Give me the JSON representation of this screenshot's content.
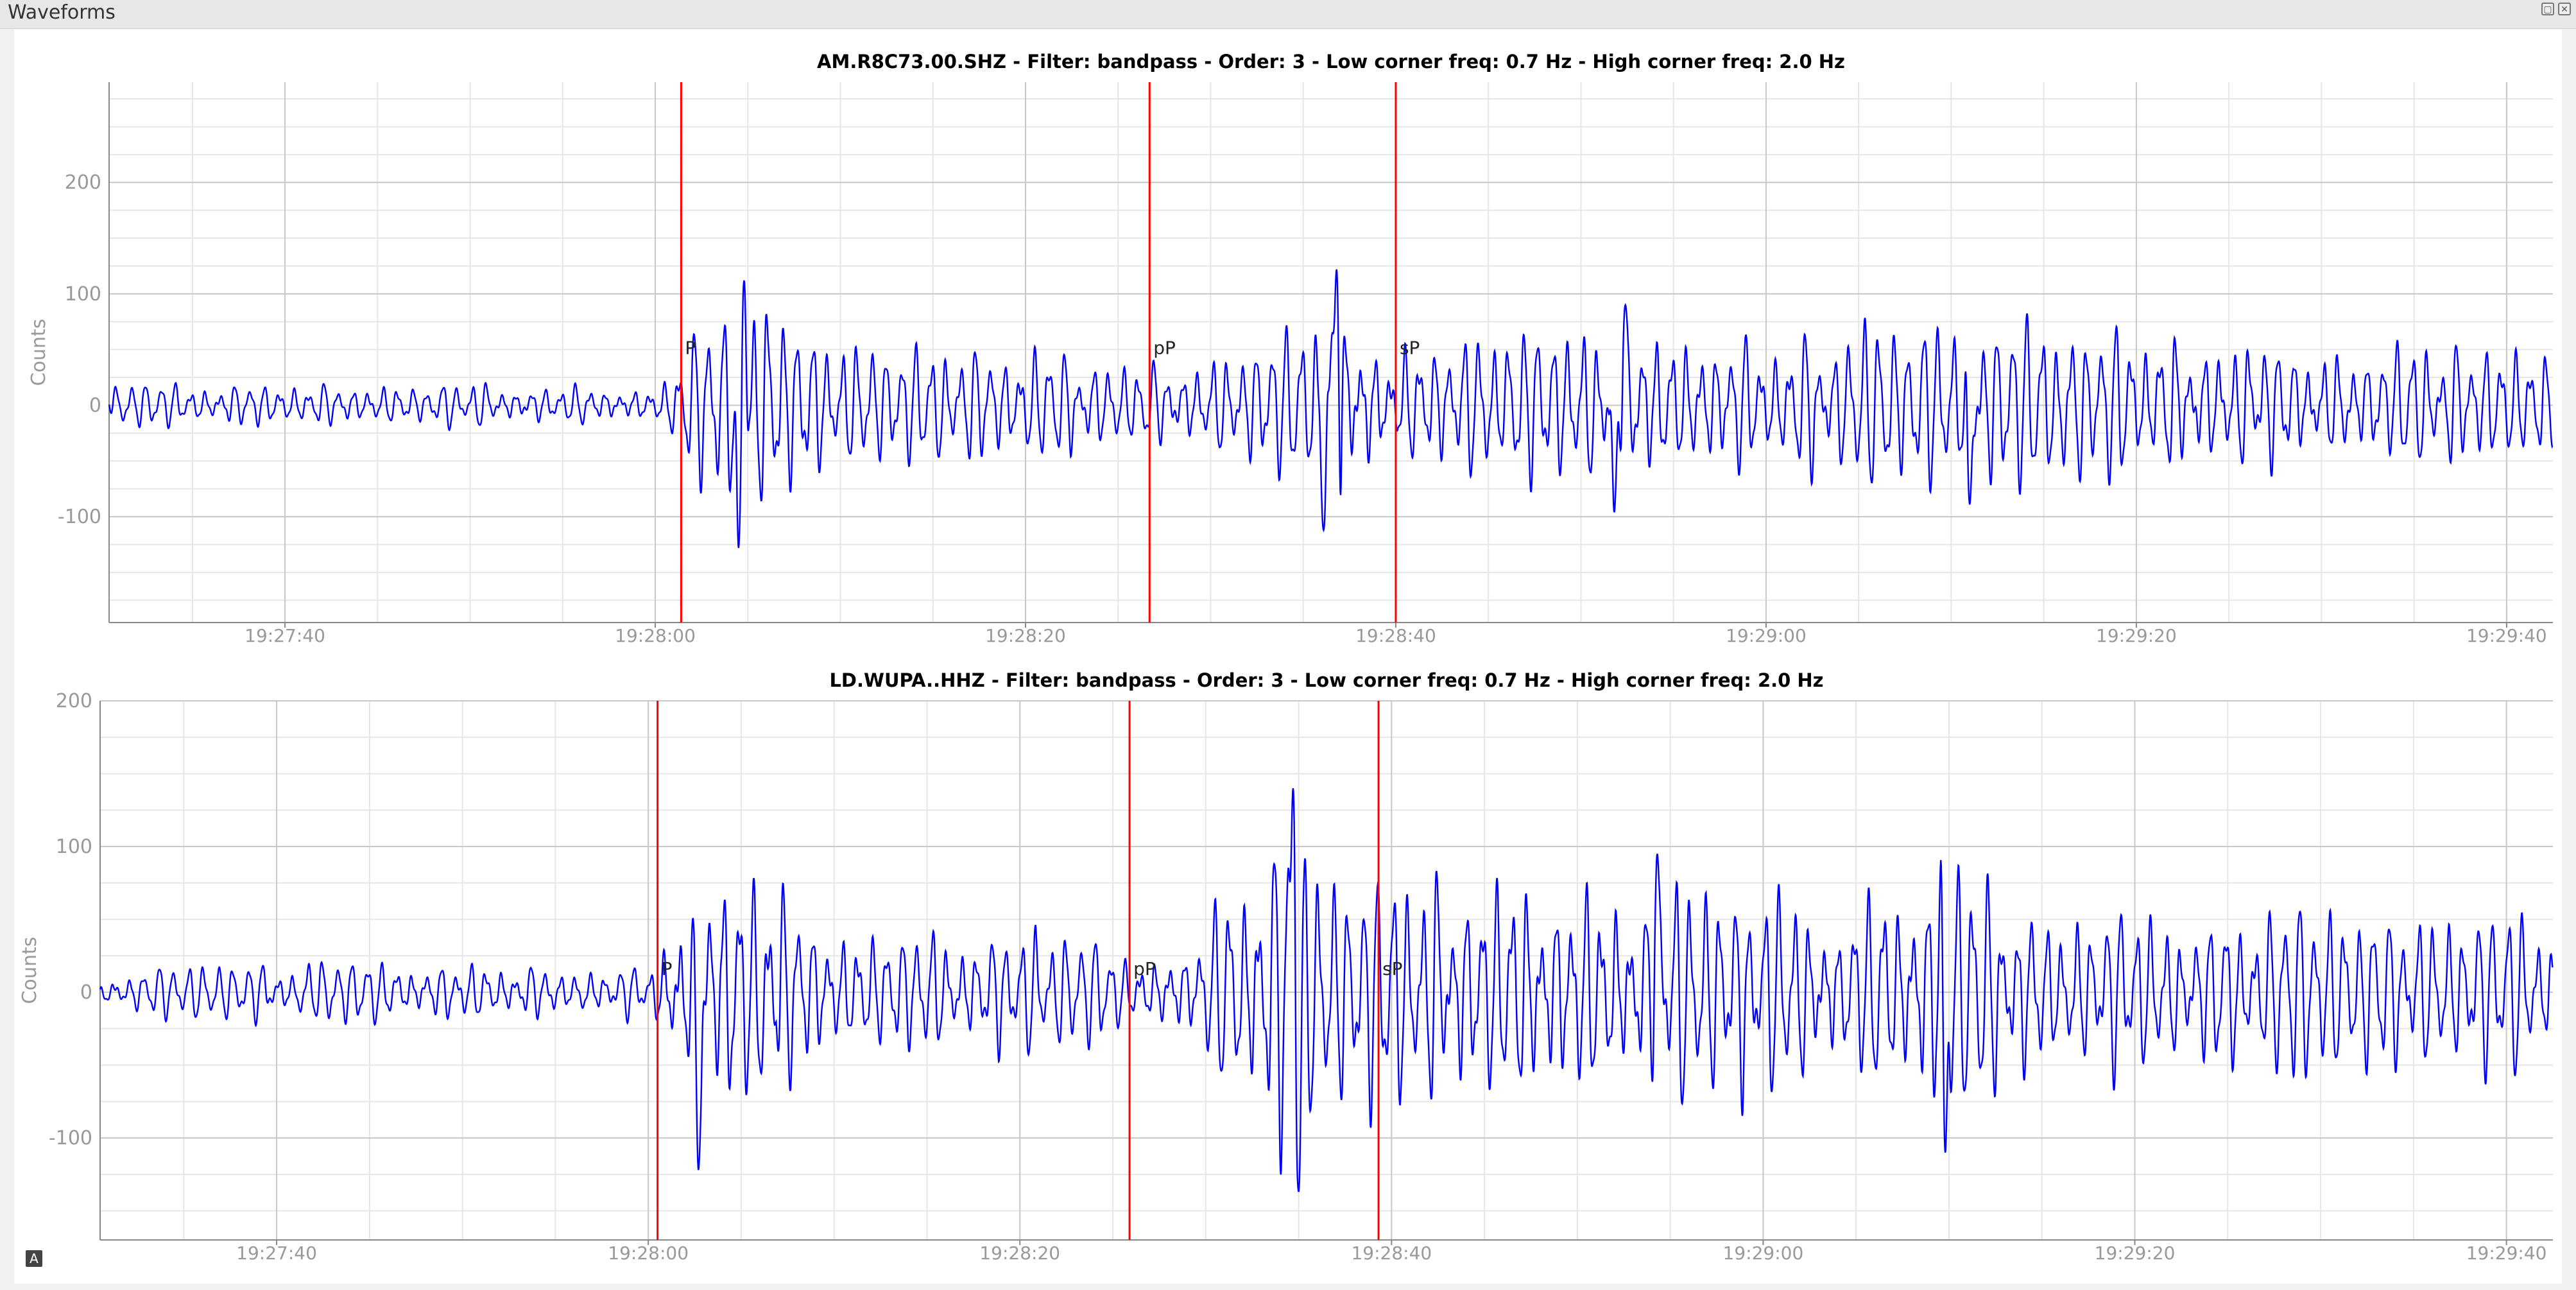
{
  "window": {
    "title": "Waveforms",
    "restore_icon": "restore-window-icon",
    "close_icon": "close-window-icon",
    "autoscale_label": "A"
  },
  "colors": {
    "trace": "#0000ff",
    "pick": "#ff0000",
    "grid_major": "#c8c8c8",
    "grid_minor": "#e6e6e6",
    "axis": "#888888",
    "label": "#999999",
    "title": "#000000"
  },
  "chart_data": [
    {
      "type": "line",
      "title": "AM.R8C73.00.SHZ - Filter: bandpass - Order: 3 - Low corner freq: 0.7 Hz - High corner freq: 2.0 Hz",
      "ylabel": "Counts",
      "xlabel": "",
      "xlim": [
        "19:27:30.5",
        "19:29:42.5"
      ],
      "ylim": [
        -195,
        290
      ],
      "x_ticks": [
        "19:27:40",
        "19:28:00",
        "19:28:20",
        "19:28:40",
        "19:29:00",
        "19:29:20",
        "19:29:40"
      ],
      "y_ticks": [
        -100,
        0,
        100,
        200
      ],
      "grid": true,
      "picks": [
        {
          "label": "P",
          "time": "19:28:01.4"
        },
        {
          "label": "pP",
          "time": "19:28:26.7"
        },
        {
          "label": "sP",
          "time": "19:28:40.0"
        }
      ],
      "series": [
        {
          "envelope": [
            [
              "19:27:30.5",
              20
            ],
            [
              "19:28:00",
              22
            ],
            [
              "19:28:03",
              90
            ],
            [
              "19:28:05",
              120
            ],
            [
              "19:28:10",
              60
            ],
            [
              "19:28:20",
              50
            ],
            [
              "19:28:26",
              40
            ],
            [
              "19:28:30",
              50
            ],
            [
              "19:28:35",
              80
            ],
            [
              "19:28:37",
              110
            ],
            [
              "19:28:40",
              60
            ],
            [
              "19:28:45",
              70
            ],
            [
              "19:28:52",
              85
            ],
            [
              "19:29:00",
              60
            ],
            [
              "19:29:10",
              80
            ],
            [
              "19:29:20",
              75
            ],
            [
              "19:29:30",
              60
            ],
            [
              "19:29:42.5",
              55
            ]
          ],
          "peaks": [
            [
              "19:28:04.8",
              112
            ],
            [
              "19:28:04.5",
              -128
            ],
            [
              "19:28:36.8",
              122
            ],
            [
              "19:28:36.1",
              -112
            ],
            [
              "19:28:52.4",
              90
            ],
            [
              "19:28:51.8",
              -96
            ],
            [
              "19:29:11.0",
              -89
            ]
          ]
        }
      ]
    },
    {
      "type": "line",
      "title": "LD.WUPA..HHZ - Filter: bandpass - Order: 3 - Low corner freq: 0.7 Hz - High corner freq: 2.0 Hz",
      "ylabel": "Counts",
      "xlabel": "",
      "xlim": [
        "19:27:30.5",
        "19:29:42.5"
      ],
      "ylim": [
        -170,
        200
      ],
      "x_ticks": [
        "19:27:40",
        "19:28:00",
        "19:28:20",
        "19:28:40",
        "19:29:00",
        "19:29:20",
        "19:29:40"
      ],
      "y_ticks": [
        -100,
        0,
        100,
        200
      ],
      "grid": true,
      "picks": [
        {
          "label": "P",
          "time": "19:28:00.5"
        },
        {
          "label": "pP",
          "time": "19:28:25.9"
        },
        {
          "label": "sP",
          "time": "19:28:39.3"
        }
      ],
      "series": [
        {
          "envelope": [
            [
              "19:27:30.5",
              15
            ],
            [
              "19:27:45",
              25
            ],
            [
              "19:28:00",
              20
            ],
            [
              "19:28:02",
              90
            ],
            [
              "19:28:05",
              100
            ],
            [
              "19:28:10",
              50
            ],
            [
              "19:28:20",
              45
            ],
            [
              "19:28:26",
              30
            ],
            [
              "19:28:30",
              50
            ],
            [
              "19:28:34",
              130
            ],
            [
              "19:28:37",
              80
            ],
            [
              "19:28:45",
              90
            ],
            [
              "19:28:55",
              85
            ],
            [
              "19:29:05",
              70
            ],
            [
              "19:29:09",
              100
            ],
            [
              "19:29:15",
              60
            ],
            [
              "19:29:25",
              60
            ],
            [
              "19:29:42.5",
              55
            ]
          ],
          "peaks": [
            [
              "19:28:02.7",
              -122
            ],
            [
              "19:28:34.7",
              140
            ],
            [
              "19:28:35.0",
              -137
            ],
            [
              "19:29:09.6",
              95
            ],
            [
              "19:29:09.8",
              -110
            ],
            [
              "19:28:54.3",
              95
            ]
          ]
        }
      ]
    }
  ]
}
